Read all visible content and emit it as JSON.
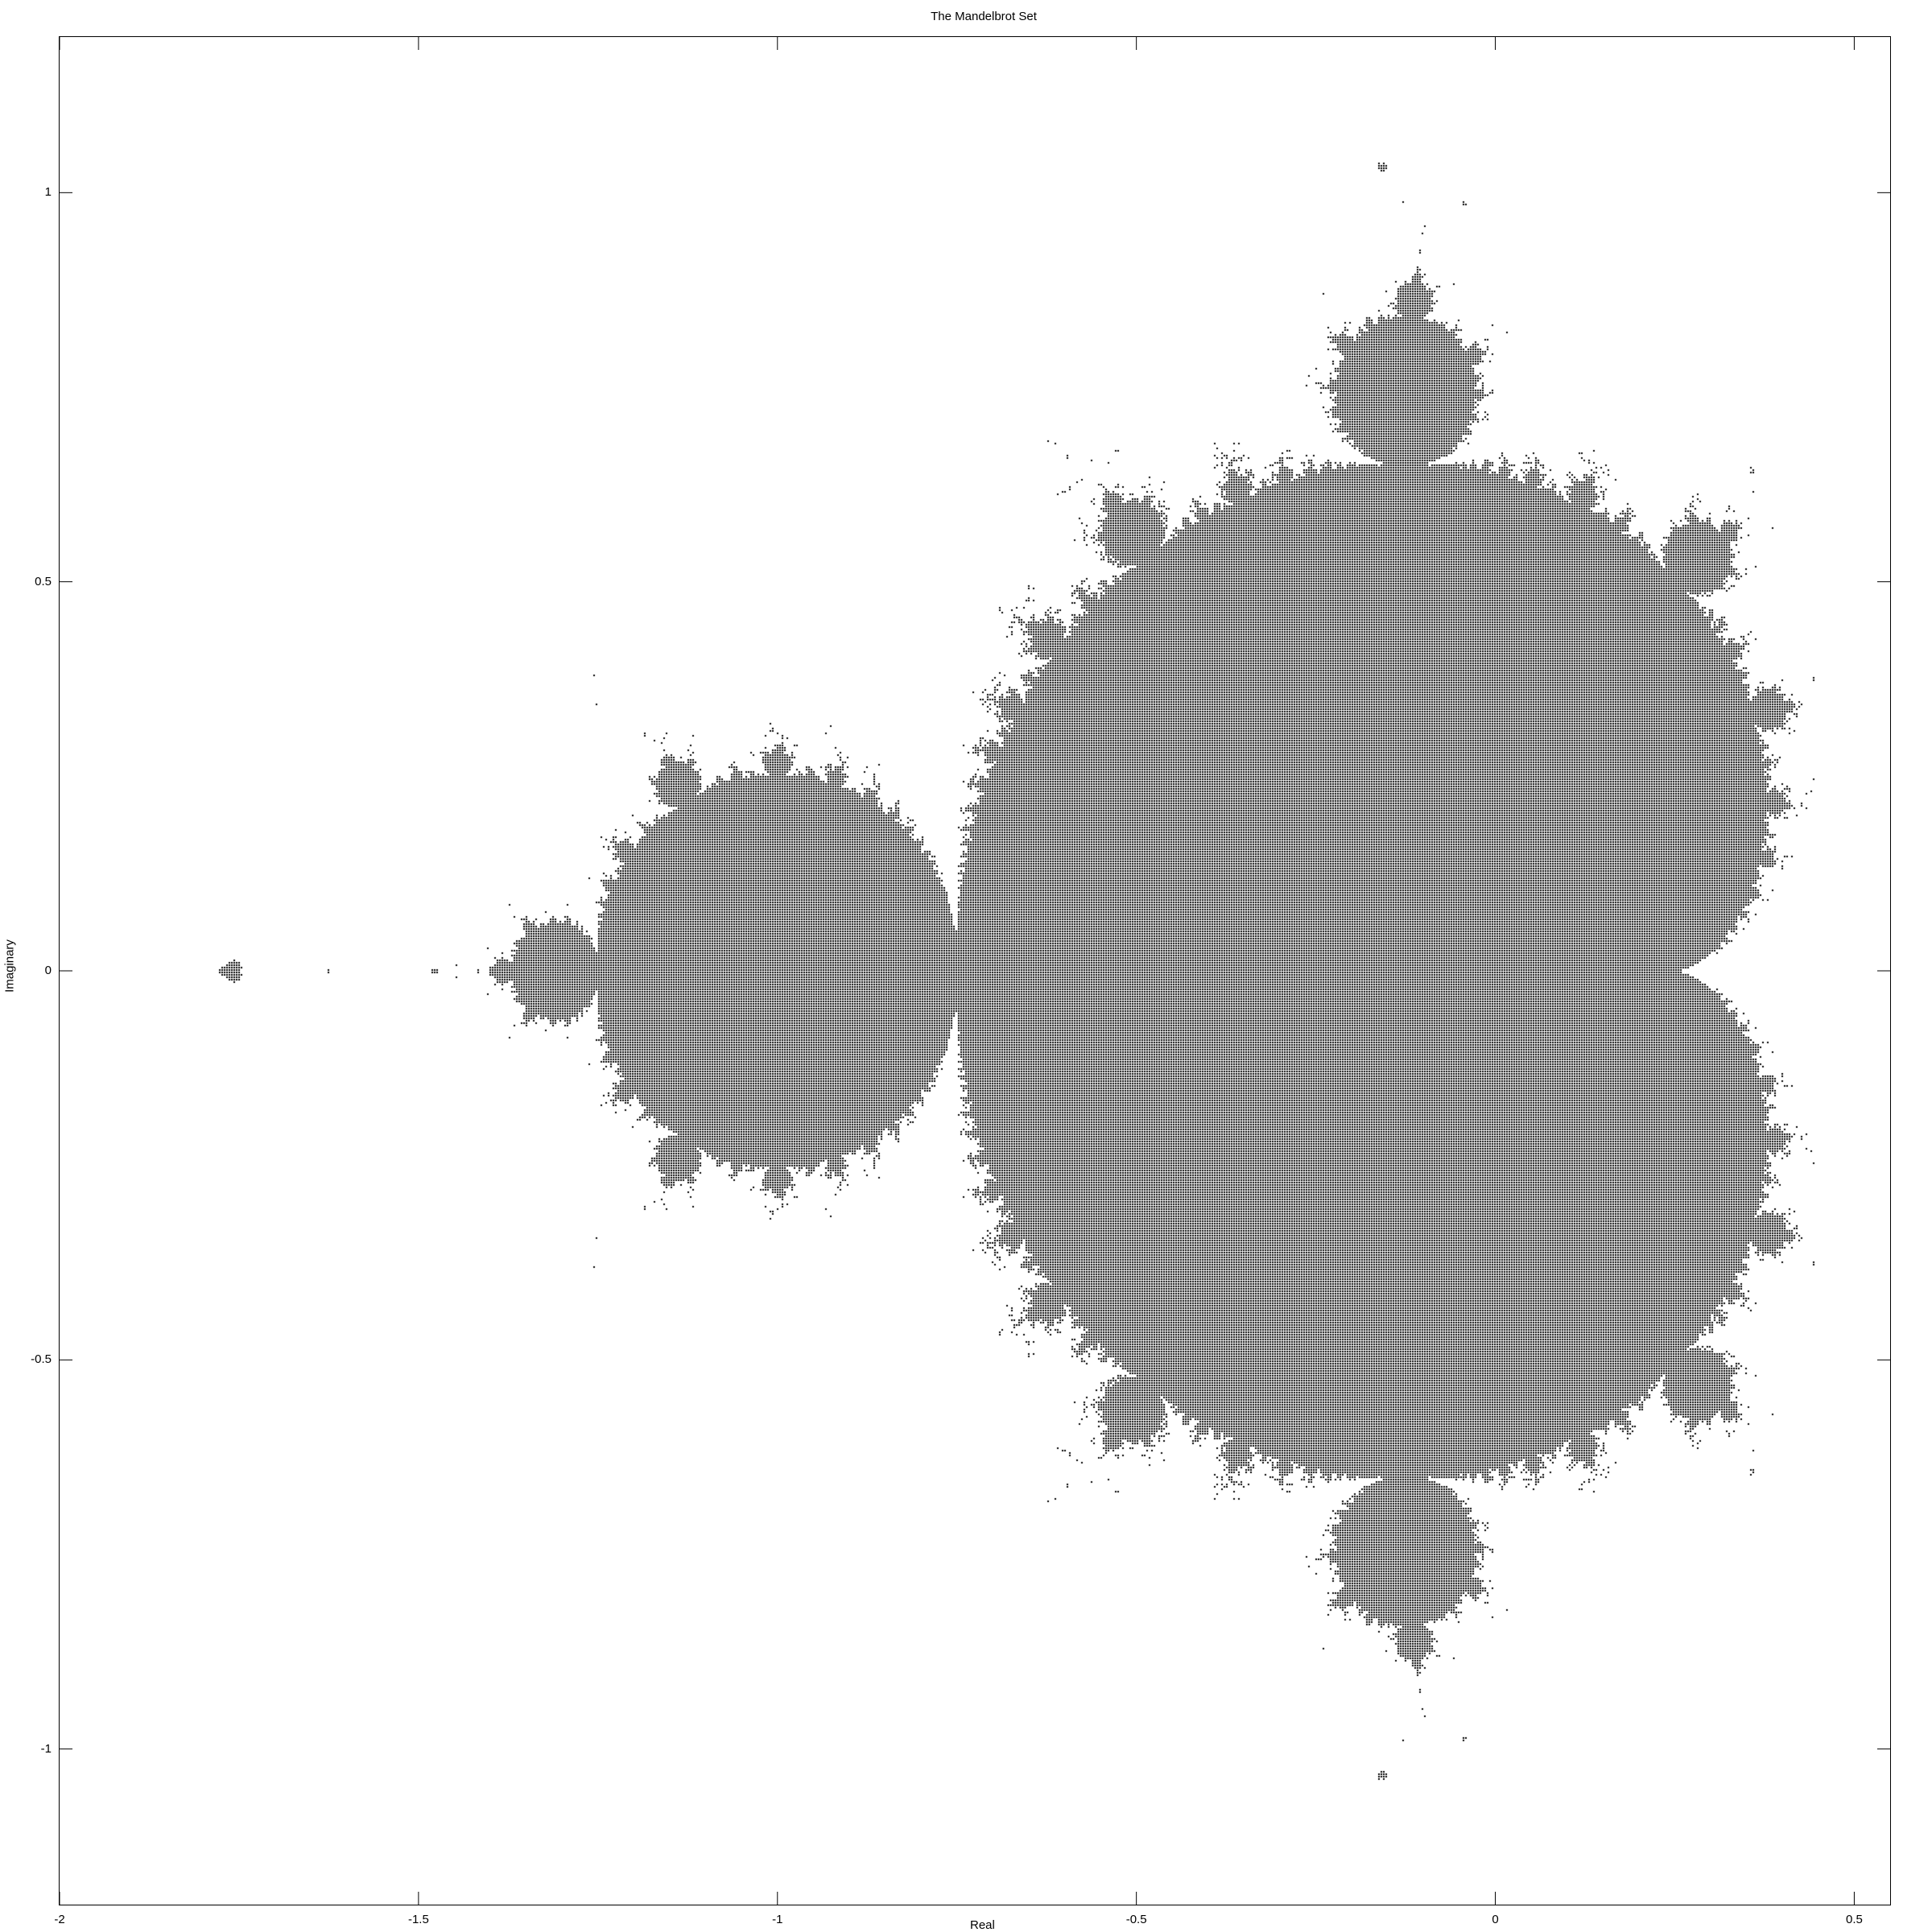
{
  "chart_data": {
    "type": "scatter",
    "title": "The Mandelbrot Set",
    "xlabel": "Real",
    "ylabel": "Imaginary",
    "xlim": [
      -2,
      0.55
    ],
    "ylim": [
      -1.2,
      1.2
    ],
    "x_ticks": [
      -2,
      -1.5,
      -1,
      -0.5,
      0,
      0.5
    ],
    "x_tick_labels": [
      "-2",
      "-1.5",
      "-1",
      "-0.5",
      "0",
      "0.5"
    ],
    "y_ticks": [
      1,
      0.5,
      0,
      -0.5,
      -1
    ],
    "y_tick_labels": [
      "1",
      "0.5",
      "0",
      "-0.5",
      "-1"
    ],
    "grid": false,
    "legend": "none",
    "series": [
      {
        "description_of_set": "points c with bounded z -> z^2 + c",
        "marker_color": "#000000",
        "max_iterations": 60,
        "escape_radius": 2
      }
    ]
  }
}
